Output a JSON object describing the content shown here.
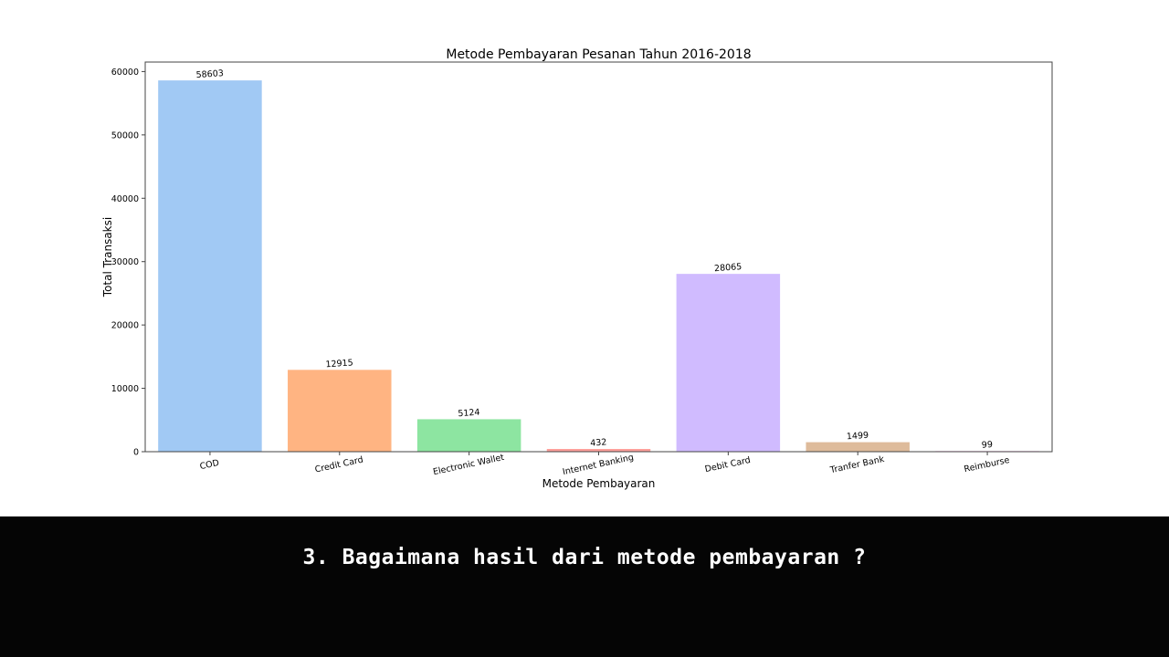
{
  "chart_data": {
    "type": "bar",
    "title": "Metode Pembayaran Pesanan Tahun 2016-2018",
    "xlabel": "Metode Pembayaran",
    "ylabel": "Total Transaksi",
    "categories": [
      "COD",
      "Credit Card",
      "Electronic Wallet",
      "Internet Banking",
      "Debit Card",
      "Tranfer Bank",
      "Reimburse"
    ],
    "values": [
      58603,
      12915,
      5124,
      432,
      28065,
      1499,
      99
    ],
    "colors": [
      "#a1c9f4",
      "#ffb482",
      "#8de5a1",
      "#ff9f9b",
      "#d0bbff",
      "#debb9b",
      "#fab0e4"
    ],
    "ylim": [
      0,
      61500
    ],
    "yticks": [
      0,
      10000,
      20000,
      30000,
      40000,
      50000,
      60000
    ],
    "grid": false,
    "legend": "none"
  },
  "caption": {
    "text": "3. Bagaimana hasil dari metode pembayaran ?"
  }
}
